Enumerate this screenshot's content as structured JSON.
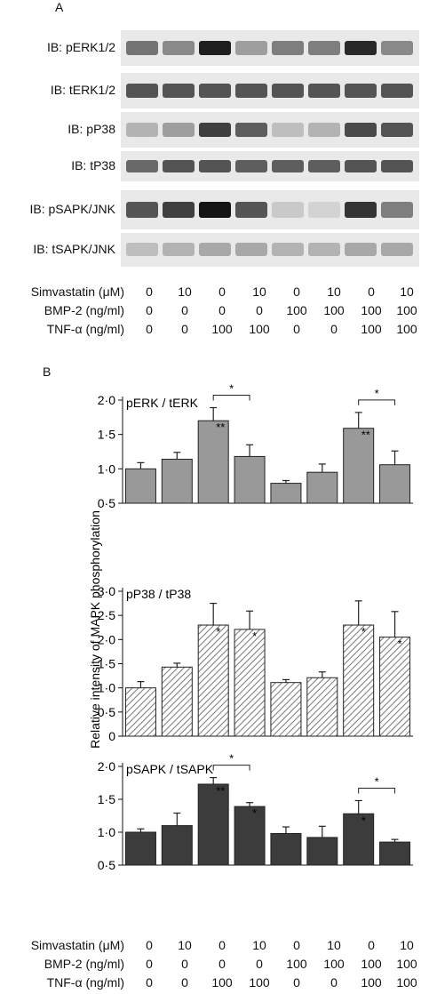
{
  "panel_a": {
    "letter": "A",
    "blots": [
      {
        "label": "IB: pERK1/2"
      },
      {
        "label": "IB:  tERK1/2"
      },
      {
        "label": "IB:  pP38"
      },
      {
        "label": "IB: tP38"
      },
      {
        "label": "IB:  pSAPK/JNK"
      },
      {
        "label": "IB:  tSAPK/JNK"
      }
    ],
    "conditions": {
      "rows": [
        {
          "label": "Simvastatin (μM)",
          "values": [
            "0",
            "10",
            "0",
            "10",
            "0",
            "10",
            "0",
            "10"
          ]
        },
        {
          "label": "BMP-2 (ng/ml)",
          "values": [
            "0",
            "0",
            "0",
            "0",
            "100",
            "100",
            "100",
            "100"
          ]
        },
        {
          "label": "TNF-α (ng/ml)",
          "values": [
            "0",
            "0",
            "100",
            "100",
            "0",
            "0",
            "100",
            "100"
          ]
        }
      ]
    }
  },
  "panel_b": {
    "letter": "B",
    "ylabel": "Relative intensity of MAPK phosphorylation",
    "conditions": {
      "rows": [
        {
          "label": "Simvastatin (μM)",
          "values": [
            "0",
            "10",
            "0",
            "10",
            "0",
            "10",
            "0",
            "10"
          ]
        },
        {
          "label": "BMP-2 (ng/ml)",
          "values": [
            "0",
            "0",
            "0",
            "0",
            "100",
            "100",
            "100",
            "100"
          ]
        },
        {
          "label": "TNF-α (ng/ml)",
          "values": [
            "0",
            "0",
            "100",
            "100",
            "0",
            "0",
            "100",
            "100"
          ]
        }
      ]
    }
  },
  "chart_data": [
    {
      "type": "bar",
      "title": "pERK / tERK",
      "ylim": [
        0.5,
        2.0
      ],
      "yticks": [
        "0·5",
        "1·0",
        "1·5",
        "2·0"
      ],
      "ytick_values": [
        0.5,
        1.0,
        1.5,
        2.0
      ],
      "fill": "#999999",
      "values": [
        1.0,
        1.14,
        1.7,
        1.18,
        0.79,
        0.95,
        1.59,
        1.06
      ],
      "errors": [
        0.09,
        0.1,
        0.19,
        0.17,
        0.04,
        0.12,
        0.23,
        0.2
      ],
      "bar_marks": [
        "",
        "",
        "**",
        "",
        "",
        "",
        "**",
        ""
      ],
      "brackets": [
        {
          "from": 2,
          "to": 3,
          "label": "*"
        },
        {
          "from": 6,
          "to": 7,
          "label": "*"
        }
      ],
      "grid": false
    },
    {
      "type": "bar",
      "title": "pP38 / tP38",
      "ylim": [
        0,
        3.0
      ],
      "yticks": [
        "0",
        "0·5",
        "1·0",
        "1·5",
        "2·0",
        "2·5",
        "3·0"
      ],
      "ytick_values": [
        0,
        0.5,
        1.0,
        1.5,
        2.0,
        2.5,
        3.0
      ],
      "fill": "hatch",
      "values": [
        1.0,
        1.43,
        2.3,
        2.21,
        1.11,
        1.21,
        2.3,
        2.05
      ],
      "errors": [
        0.13,
        0.08,
        0.45,
        0.38,
        0.06,
        0.12,
        0.5,
        0.53
      ],
      "bar_marks": [
        "",
        "",
        "*",
        "*",
        "",
        "",
        "*",
        "*"
      ],
      "brackets": [],
      "grid": false
    },
    {
      "type": "bar",
      "title": "pSAPK / tSAPK",
      "ylim": [
        0.5,
        2.0
      ],
      "yticks": [
        "0·5",
        "1·0",
        "1·5",
        "2·0"
      ],
      "ytick_values": [
        0.5,
        1.0,
        1.5,
        2.0
      ],
      "fill": "#3c3c3c",
      "values": [
        1.0,
        1.1,
        1.73,
        1.39,
        0.98,
        0.92,
        1.28,
        0.85
      ],
      "errors": [
        0.05,
        0.19,
        0.1,
        0.06,
        0.1,
        0.17,
        0.2,
        0.04
      ],
      "bar_marks": [
        "",
        "",
        "**",
        "*",
        "",
        "",
        "*",
        ""
      ],
      "brackets": [
        {
          "from": 2,
          "to": 3,
          "label": "*"
        },
        {
          "from": 6,
          "to": 7,
          "label": "*"
        }
      ],
      "grid": false
    }
  ]
}
